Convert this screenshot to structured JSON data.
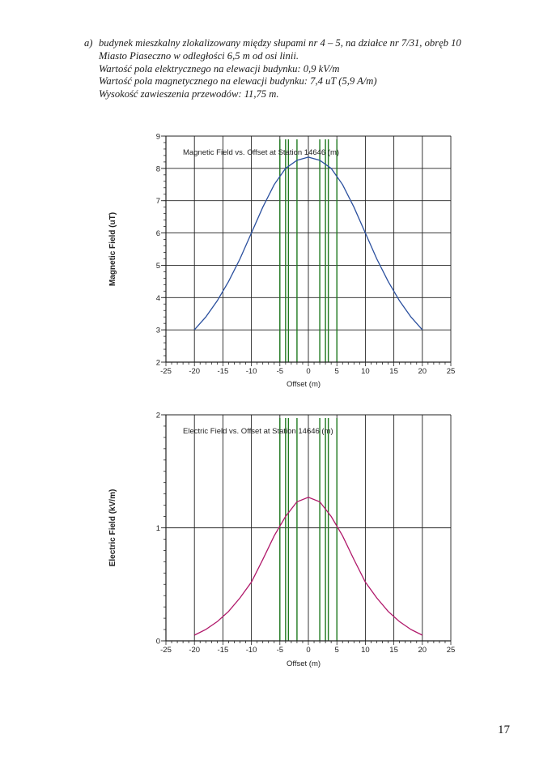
{
  "header": {
    "prefix": "a)",
    "lines": [
      "budynek mieszkalny zlokalizowany między słupami nr 4 – 5, na działce nr 7/31, obręb 10",
      "Miasto Piaseczno w odległości 6,5 m od osi linii.",
      "Wartość pola elektrycznego na elewacji budynku: 0,9 kV/m",
      "Wartość pola magnetycznego na elewacji budynku: 7,4 uT (5,9 A/m)",
      "Wysokość zawieszenia przewodów: 11,75 m."
    ]
  },
  "page_number": "17",
  "colors": {
    "magnetic_line": "#2a4f9e",
    "electric_line": "#b0186a",
    "conductor_lines": "#1f7a1f",
    "axis": "#222222",
    "grid": "#222222"
  },
  "chart_data": [
    {
      "type": "line",
      "title": "Magnetic Field vs. Offset at Station 14646 (m)",
      "xlabel": "Offset (m)",
      "ylabel": "Magnetic Field (uT)",
      "xlim": [
        -25,
        25
      ],
      "ylim": [
        2,
        9
      ],
      "x_ticks": [
        "-25",
        "-20",
        "-15",
        "-10",
        "-5",
        "0",
        "5",
        "10",
        "15",
        "20",
        "25"
      ],
      "y_ticks": [
        "2",
        "3",
        "4",
        "5",
        "6",
        "7",
        "8",
        "9"
      ],
      "vertical_lines_x": [
        -5,
        -4,
        -3.5,
        -2,
        2,
        3,
        3.5,
        5
      ],
      "series": [
        {
          "x": [
            -20,
            -18,
            -16,
            -14,
            -12,
            -10,
            -8,
            -6,
            -4,
            -2,
            0,
            2,
            4,
            6,
            8,
            10,
            12,
            14,
            16,
            18,
            20
          ],
          "y": [
            3.0,
            3.4,
            3.9,
            4.5,
            5.2,
            6.0,
            6.8,
            7.5,
            8.0,
            8.25,
            8.35,
            8.25,
            8.0,
            7.5,
            6.8,
            6.0,
            5.2,
            4.5,
            3.9,
            3.4,
            3.0
          ]
        }
      ]
    },
    {
      "type": "line",
      "title": "Electric Field vs. Offset at Station 14646 (m)",
      "xlabel": "Offset (m)",
      "ylabel": "Electric Field (kV/m)",
      "xlim": [
        -25,
        25
      ],
      "ylim": [
        0,
        2
      ],
      "x_ticks": [
        "-25",
        "-20",
        "-15",
        "-10",
        "-5",
        "0",
        "5",
        "10",
        "15",
        "20",
        "25"
      ],
      "y_ticks": [
        "0",
        "1",
        "2"
      ],
      "vertical_lines_x": [
        -5,
        -4,
        -3.5,
        -2,
        2,
        3,
        3.5,
        5
      ],
      "series": [
        {
          "x": [
            -20,
            -18,
            -16,
            -14,
            -12,
            -10,
            -8,
            -6,
            -4,
            -2,
            0,
            2,
            4,
            6,
            8,
            10,
            12,
            14,
            16,
            18,
            20
          ],
          "y": [
            0.05,
            0.1,
            0.17,
            0.26,
            0.38,
            0.52,
            0.72,
            0.93,
            1.1,
            1.23,
            1.27,
            1.23,
            1.1,
            0.93,
            0.72,
            0.52,
            0.38,
            0.26,
            0.17,
            0.1,
            0.05
          ]
        }
      ]
    }
  ]
}
